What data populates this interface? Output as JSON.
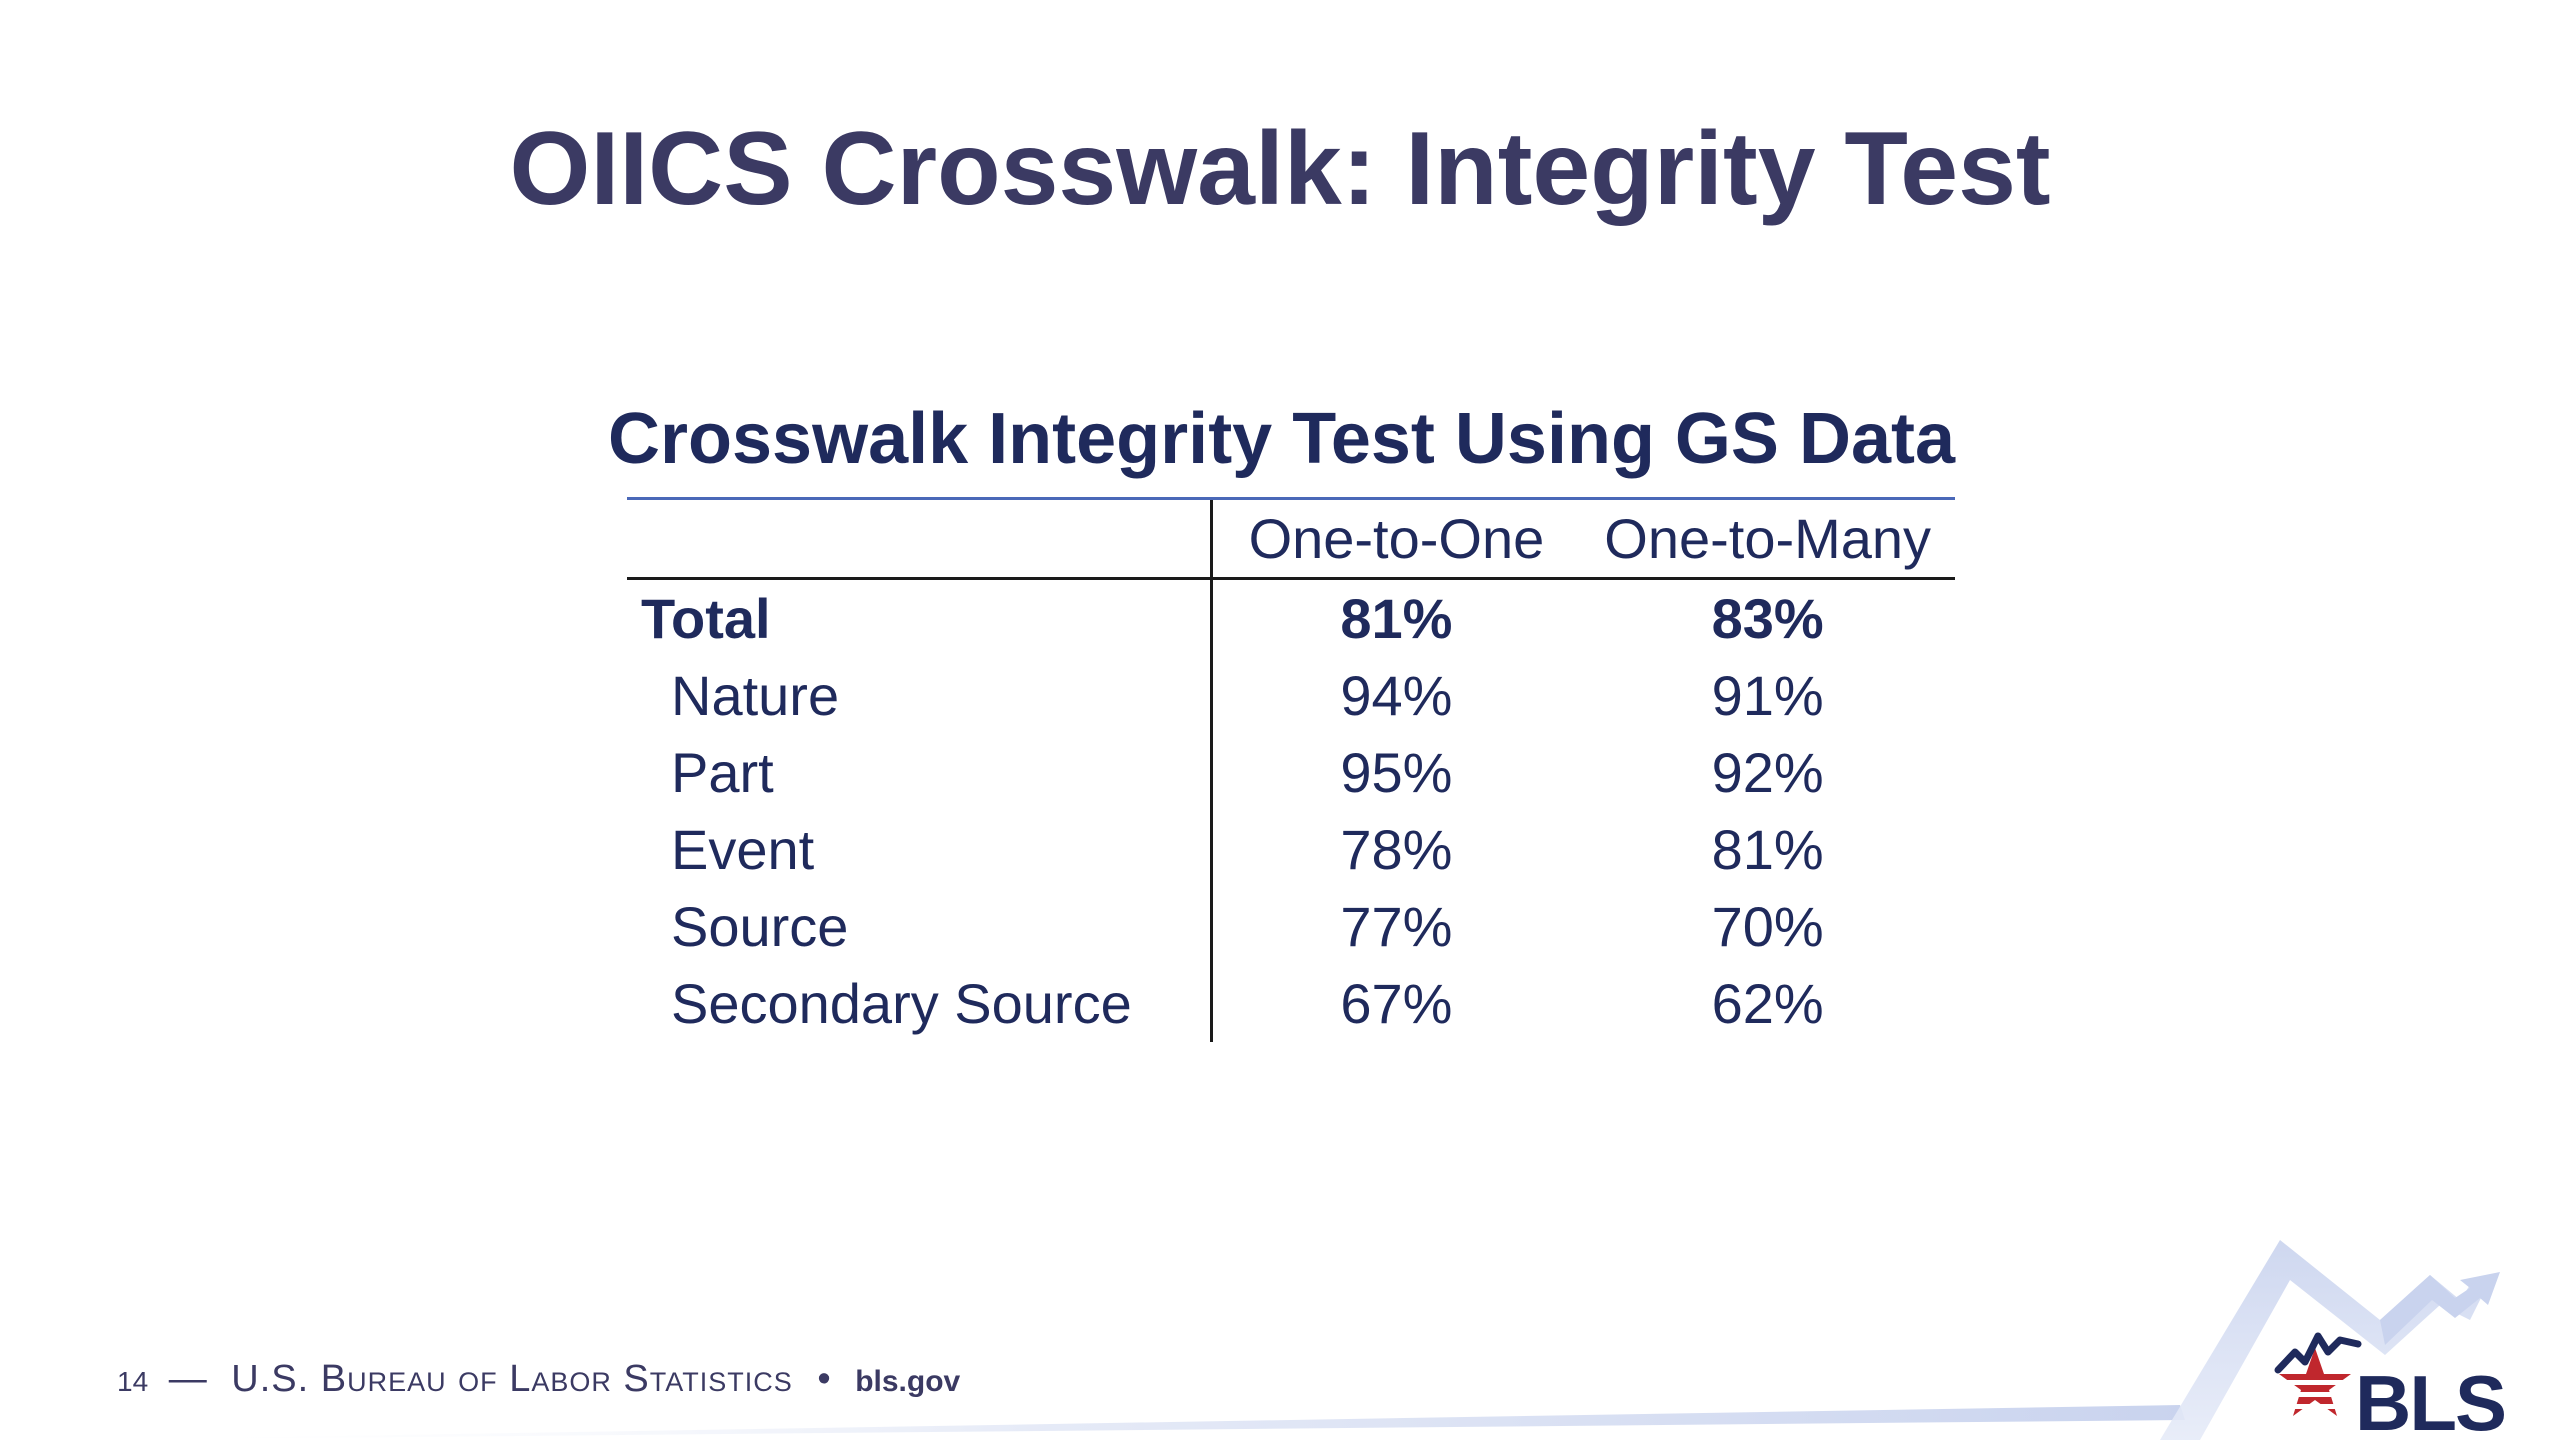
{
  "slide": {
    "title": "OIICS Crosswalk: Integrity Test"
  },
  "table": {
    "title": "Crosswalk Integrity Test Using GS Data",
    "headers": [
      "",
      "One-to-One",
      "One-to-Many"
    ],
    "total": {
      "label": "Total",
      "one_to_one": "81%",
      "one_to_many": "83%"
    },
    "rows": [
      {
        "label": "Nature",
        "one_to_one": "94%",
        "one_to_many": "91%"
      },
      {
        "label": "Part",
        "one_to_one": "95%",
        "one_to_many": "92%"
      },
      {
        "label": "Event",
        "one_to_one": "78%",
        "one_to_many": "81%"
      },
      {
        "label": "Source",
        "one_to_one": "77%",
        "one_to_many": "70%"
      },
      {
        "label": "Secondary Source",
        "one_to_one": "67%",
        "one_to_many": "62%"
      }
    ]
  },
  "footer": {
    "page_number": "14",
    "dash": "—",
    "organization": "U.S. Bureau of Labor Statistics",
    "separator": "•",
    "website": "bls.gov"
  },
  "logo": {
    "text": "BLS",
    "icon": "bls-star-chart-logo"
  },
  "colors": {
    "title": "#3b3a63",
    "table_text": "#1f2a5c",
    "accent_rule": "#4a68b8",
    "logo_red": "#c0272d",
    "logo_blue": "#1f2a5c",
    "swoosh": "#c9d3ee"
  }
}
